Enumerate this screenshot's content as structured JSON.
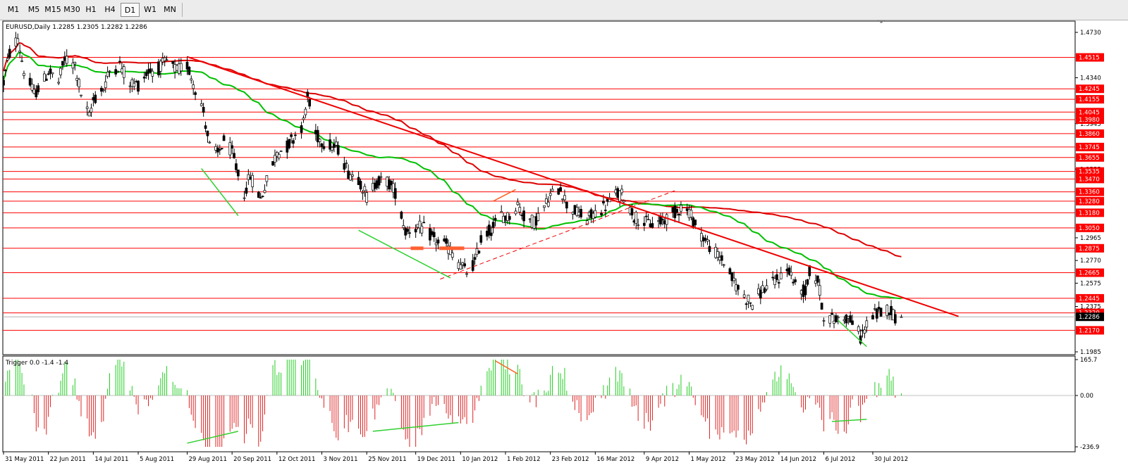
{
  "toolbar": {
    "timeframes": [
      "M1",
      "M5",
      "M15",
      "M30",
      "H1",
      "H4",
      "D1",
      "W1",
      "MN"
    ],
    "active": "D1"
  },
  "main_chart": {
    "header": "EURUSD,Daily  1.2285 1.2305 1.2282 1.2286",
    "y_ticks": [
      "1.4730",
      "1.4340",
      "1.3945",
      "1.3555",
      "1.2965",
      "1.2770",
      "1.2575",
      "1.2375",
      "1.1985"
    ],
    "y_tick_values": [
      1.473,
      1.434,
      1.3945,
      1.3555,
      1.2965,
      1.277,
      1.2575,
      1.2375,
      1.1985
    ],
    "current_price": "1.2286",
    "level_labels": [
      "1.4515",
      "1.4245",
      "1.4155",
      "1.4045",
      "1.3980",
      "1.3860",
      "1.3745",
      "1.3655",
      "1.3535",
      "1.3470",
      "1.3360",
      "1.3280",
      "1.3180",
      "1.3050",
      "1.2875",
      "1.2665",
      "1.2445",
      "1.2320",
      "1.2170"
    ],
    "level_values": [
      1.4515,
      1.4245,
      1.4155,
      1.4045,
      1.398,
      1.386,
      1.3745,
      1.3655,
      1.3535,
      1.347,
      1.336,
      1.328,
      1.318,
      1.305,
      1.2875,
      1.2665,
      1.2445,
      1.232,
      1.217
    ],
    "level_color": "#ff0000",
    "candle_color": "#000000",
    "ma_fast_color": "#00c000",
    "ma_slow_color": "#dd0000",
    "divergence_colors": {
      "bull": "#30d030",
      "bear": "#ff6020"
    }
  },
  "indicator": {
    "header": "Trigger 0.0 -1.4 -1.4",
    "y_ticks": [
      "165.7",
      "0.00",
      "-236.9"
    ],
    "y_tick_values": [
      165.7,
      0.0,
      -236.9
    ],
    "pos_color": "#22cc22",
    "neg_color": "#dd2222"
  },
  "x_axis": {
    "labels": [
      "31 May 2011",
      "22 Jun 2011",
      "14 Jul 2011",
      "5 Aug 2011",
      "29 Aug 2011",
      "20 Sep 2011",
      "12 Oct 2011",
      "3 Nov 2011",
      "25 Nov 2011",
      "19 Dec 2011",
      "10 Jan 2012",
      "1 Feb 2012",
      "23 Feb 2012",
      "16 Mar 2012",
      "9 Apr 2012",
      "1 May 2012",
      "23 May 2012",
      "14 Jun 2012",
      "6 Jul 2012",
      "30 Jul 2012"
    ]
  },
  "chart_data": {
    "type": "candlestick",
    "symbol": "EURUSD",
    "timeframe": "Daily",
    "last_bar": {
      "open": 1.2285,
      "high": 1.2305,
      "low": 1.2282,
      "close": 1.2286
    },
    "date_range": [
      "31 May 2011",
      "30 Jul 2012"
    ],
    "price_ylim": [
      1.1985,
      1.473
    ],
    "close_path": [
      {
        "date": "31 May 2011",
        "close": 1.43
      },
      {
        "date": "3 Jun 2011",
        "close": 1.455
      },
      {
        "date": "7 Jun 2011",
        "close": 1.468
      },
      {
        "date": "10 Jun 2011",
        "close": 1.44
      },
      {
        "date": "15 Jun 2011",
        "close": 1.42
      },
      {
        "date": "20 Jun 2011",
        "close": 1.432
      },
      {
        "date": "22 Jun 2011",
        "close": 1.44
      },
      {
        "date": "27 Jun 2011",
        "close": 1.43
      },
      {
        "date": "30 Jun 2011",
        "close": 1.45
      },
      {
        "date": "5 Jul 2011",
        "close": 1.445
      },
      {
        "date": "8 Jul 2011",
        "close": 1.42
      },
      {
        "date": "12 Jul 2011",
        "close": 1.4
      },
      {
        "date": "14 Jul 2011",
        "close": 1.415
      },
      {
        "date": "19 Jul 2011",
        "close": 1.425
      },
      {
        "date": "22 Jul 2011",
        "close": 1.44
      },
      {
        "date": "27 Jul 2011",
        "close": 1.445
      },
      {
        "date": "1 Aug 2011",
        "close": 1.43
      },
      {
        "date": "5 Aug 2011",
        "close": 1.428
      },
      {
        "date": "10 Aug 2011",
        "close": 1.44
      },
      {
        "date": "15 Aug 2011",
        "close": 1.442
      },
      {
        "date": "19 Aug 2011",
        "close": 1.448
      },
      {
        "date": "24 Aug 2011",
        "close": 1.44
      },
      {
        "date": "29 Aug 2011",
        "close": 1.445
      },
      {
        "date": "1 Sep 2011",
        "close": 1.43
      },
      {
        "date": "6 Sep 2011",
        "close": 1.405
      },
      {
        "date": "9 Sep 2011",
        "close": 1.375
      },
      {
        "date": "13 Sep 2011",
        "close": 1.368
      },
      {
        "date": "16 Sep 2011",
        "close": 1.38
      },
      {
        "date": "20 Sep 2011",
        "close": 1.37
      },
      {
        "date": "23 Sep 2011",
        "close": 1.35
      },
      {
        "date": "26 Sep 2011",
        "close": 1.335
      },
      {
        "date": "29 Sep 2011",
        "close": 1.35
      },
      {
        "date": "4 Oct 2011",
        "close": 1.33
      },
      {
        "date": "7 Oct 2011",
        "close": 1.345
      },
      {
        "date": "12 Oct 2011",
        "close": 1.37
      },
      {
        "date": "17 Oct 2011",
        "close": 1.375
      },
      {
        "date": "21 Oct 2011",
        "close": 1.385
      },
      {
        "date": "25 Oct 2011",
        "close": 1.395
      },
      {
        "date": "27 Oct 2011",
        "close": 1.418
      },
      {
        "date": "31 Oct 2011",
        "close": 1.385
      },
      {
        "date": "3 Nov 2011",
        "close": 1.38
      },
      {
        "date": "8 Nov 2011",
        "close": 1.375
      },
      {
        "date": "11 Nov 2011",
        "close": 1.373
      },
      {
        "date": "16 Nov 2011",
        "close": 1.353
      },
      {
        "date": "21 Nov 2011",
        "close": 1.348
      },
      {
        "date": "25 Nov 2011",
        "close": 1.332
      },
      {
        "date": "30 Nov 2011",
        "close": 1.345
      },
      {
        "date": "5 Dec 2011",
        "close": 1.345
      },
      {
        "date": "9 Dec 2011",
        "close": 1.336
      },
      {
        "date": "14 Dec 2011",
        "close": 1.302
      },
      {
        "date": "19 Dec 2011",
        "close": 1.306
      },
      {
        "date": "23 Dec 2011",
        "close": 1.304
      },
      {
        "date": "29 Dec 2011",
        "close": 1.294
      },
      {
        "date": "3 Jan 2012",
        "close": 1.29
      },
      {
        "date": "9 Jan 2012",
        "close": 1.275
      },
      {
        "date": "13 Jan 2012",
        "close": 1.267
      },
      {
        "date": "17 Jan 2012",
        "close": 1.275
      },
      {
        "date": "20 Jan 2012",
        "close": 1.295
      },
      {
        "date": "25 Jan 2012",
        "close": 1.304
      },
      {
        "date": "30 Jan 2012",
        "close": 1.316
      },
      {
        "date": "2 Feb 2012",
        "close": 1.314
      },
      {
        "date": "7 Feb 2012",
        "close": 1.325
      },
      {
        "date": "10 Feb 2012",
        "close": 1.315
      },
      {
        "date": "15 Feb 2012",
        "close": 1.31
      },
      {
        "date": "20 Feb 2012",
        "close": 1.323
      },
      {
        "date": "23 Feb 2012",
        "close": 1.332
      },
      {
        "date": "28 Feb 2012",
        "close": 1.34
      },
      {
        "date": "2 Mar 2012",
        "close": 1.325
      },
      {
        "date": "7 Mar 2012",
        "close": 1.318
      },
      {
        "date": "12 Mar 2012",
        "close": 1.312
      },
      {
        "date": "16 Mar 2012",
        "close": 1.318
      },
      {
        "date": "21 Mar 2012",
        "close": 1.324
      },
      {
        "date": "26 Mar 2012",
        "close": 1.334
      },
      {
        "date": "30 Mar 2012",
        "close": 1.333
      },
      {
        "date": "4 Apr 2012",
        "close": 1.315
      },
      {
        "date": "9 Apr 2012",
        "close": 1.31
      },
      {
        "date": "13 Apr 2012",
        "close": 1.308
      },
      {
        "date": "18 Apr 2012",
        "close": 1.311
      },
      {
        "date": "23 Apr 2012",
        "close": 1.317
      },
      {
        "date": "27 Apr 2012",
        "close": 1.323
      },
      {
        "date": "1 May 2012",
        "close": 1.319
      },
      {
        "date": "4 May 2012",
        "close": 1.308
      },
      {
        "date": "9 May 2012",
        "close": 1.294
      },
      {
        "date": "14 May 2012",
        "close": 1.283
      },
      {
        "date": "18 May 2012",
        "close": 1.276
      },
      {
        "date": "23 May 2012",
        "close": 1.258
      },
      {
        "date": "28 May 2012",
        "close": 1.246
      },
      {
        "date": "1 Jun 2012",
        "close": 1.24
      },
      {
        "date": "6 Jun 2012",
        "close": 1.252
      },
      {
        "date": "11 Jun 2012",
        "close": 1.257
      },
      {
        "date": "14 Jun 2012",
        "close": 1.262
      },
      {
        "date": "19 Jun 2012",
        "close": 1.27
      },
      {
        "date": "22 Jun 2012",
        "close": 1.255
      },
      {
        "date": "27 Jun 2012",
        "close": 1.25
      },
      {
        "date": "29 Jun 2012",
        "close": 1.267
      },
      {
        "date": "3 Jul 2012",
        "close": 1.26
      },
      {
        "date": "6 Jul 2012",
        "close": 1.23
      },
      {
        "date": "11 Jul 2012",
        "close": 1.226
      },
      {
        "date": "16 Jul 2012",
        "close": 1.229
      },
      {
        "date": "20 Jul 2012",
        "close": 1.225
      },
      {
        "date": "24 Jul 2012",
        "close": 1.211
      },
      {
        "date": "27 Jul 2012",
        "close": 1.222
      },
      {
        "date": "30 Jul 2012",
        "close": 1.23
      },
      {
        "date": "2 Aug 2012",
        "close": 1.232
      },
      {
        "date": "7 Aug 2012",
        "close": 1.236
      },
      {
        "date": "10 Aug 2012",
        "close": 1.229
      },
      {
        "date": "13 Aug 2012",
        "close": 1.2286
      }
    ],
    "horizontal_levels": [
      1.4515,
      1.4245,
      1.4155,
      1.4045,
      1.398,
      1.386,
      1.3745,
      1.3655,
      1.3535,
      1.347,
      1.336,
      1.328,
      1.318,
      1.305,
      1.2875,
      1.2665,
      1.2445,
      1.232,
      1.217
    ],
    "trend_lines": [
      {
        "name": "downtrend",
        "from": {
          "date": "29 Aug 2011",
          "price": 1.452
        },
        "to": {
          "date": "10 Sep 2012",
          "price": 1.229
        }
      },
      {
        "name": "ascending-channel",
        "from": {
          "date": "31 Dec 2011",
          "price": 1.261
        },
        "to": {
          "date": "24 Apr 2012",
          "price": 1.337
        }
      }
    ],
    "indicator_name": "Trigger",
    "indicator_values": [
      0.0,
      -1.4,
      -1.4
    ],
    "indicator_ylim": [
      -236.9,
      165.7
    ]
  }
}
